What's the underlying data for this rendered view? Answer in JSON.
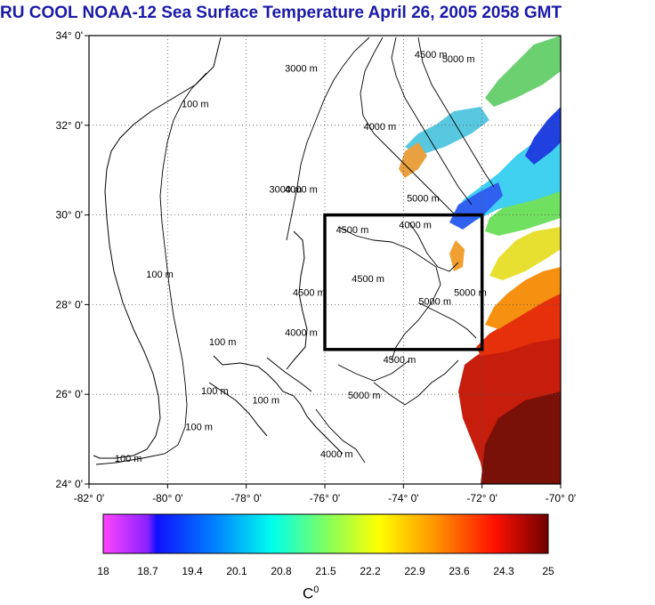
{
  "title": "RU COOL  NOAA-12 Sea Surface Temperature April 26, 2005 2058 GMT",
  "map": {
    "lat_ticks": [
      "34° 0'",
      "32° 0'",
      "30° 0'",
      "28° 0'",
      "26° 0'",
      "24° 0'"
    ],
    "lon_ticks": [
      "-82° 0'",
      "-80° 0'",
      "-78° 0'",
      "-76° 0'",
      "-74° 0'",
      "-72° 0'",
      "-70° 0'"
    ],
    "lat_range": [
      24,
      34
    ],
    "lon_range": [
      -82,
      -70
    ],
    "study_box": {
      "lon": [
        -76,
        -72
      ],
      "lat": [
        27,
        30
      ]
    },
    "contour_labels": [
      {
        "text": "100 m",
        "lon": -79.3,
        "lat": 32.4
      },
      {
        "text": "100 m",
        "lon": -80.2,
        "lat": 28.6
      },
      {
        "text": "100 m",
        "lon": -78.6,
        "lat": 27.1
      },
      {
        "text": "100 m",
        "lon": -78.8,
        "lat": 26.0
      },
      {
        "text": "100 m",
        "lon": -77.5,
        "lat": 25.8
      },
      {
        "text": "100 m",
        "lon": -81.0,
        "lat": 24.5
      },
      {
        "text": "100 m",
        "lon": -79.2,
        "lat": 25.2
      },
      {
        "text": "3000 m",
        "lon": -76.6,
        "lat": 33.2
      },
      {
        "text": "4500 m",
        "lon": -73.3,
        "lat": 33.5
      },
      {
        "text": "5000 m",
        "lon": -72.6,
        "lat": 33.4
      },
      {
        "text": "4000 m",
        "lon": -74.6,
        "lat": 31.9
      },
      {
        "text": "3000 m",
        "lon": -77.0,
        "lat": 30.5
      },
      {
        "text": "4000 m",
        "lon": -76.6,
        "lat": 30.5
      },
      {
        "text": "5000 m",
        "lon": -73.5,
        "lat": 30.3
      },
      {
        "text": "4500 m",
        "lon": -74.9,
        "lat": 28.5
      },
      {
        "text": "4500 m",
        "lon": -75.3,
        "lat": 29.6
      },
      {
        "text": "4000 m",
        "lon": -73.7,
        "lat": 29.7
      },
      {
        "text": "5000 m",
        "lon": -73.2,
        "lat": 28.0
      },
      {
        "text": "5000 m",
        "lon": -72.3,
        "lat": 28.2
      },
      {
        "text": "4500 m",
        "lon": -74.1,
        "lat": 26.7
      },
      {
        "text": "5000 m",
        "lon": -75.0,
        "lat": 25.9
      },
      {
        "text": "4000 m",
        "lon": -76.6,
        "lat": 27.3
      },
      {
        "text": "4500 m",
        "lon": -76.4,
        "lat": 28.2
      },
      {
        "text": "4000 m",
        "lon": -75.7,
        "lat": 24.6
      }
    ]
  },
  "colorbar": {
    "tick_labels": [
      "18",
      "18.7",
      "19.4",
      "20.1",
      "20.8",
      "21.5",
      "22.2",
      "22.9",
      "23.6",
      "24.3",
      "25"
    ],
    "unit": "C",
    "unit_sup": "0",
    "colors": [
      "#ff33ff",
      "#3300ff",
      "#0033ff",
      "#00a8ff",
      "#00ffe0",
      "#7dff66",
      "#e6ff00",
      "#ffcc00",
      "#ff6a00",
      "#ff1a00",
      "#b00000",
      "#7a0000"
    ]
  }
}
